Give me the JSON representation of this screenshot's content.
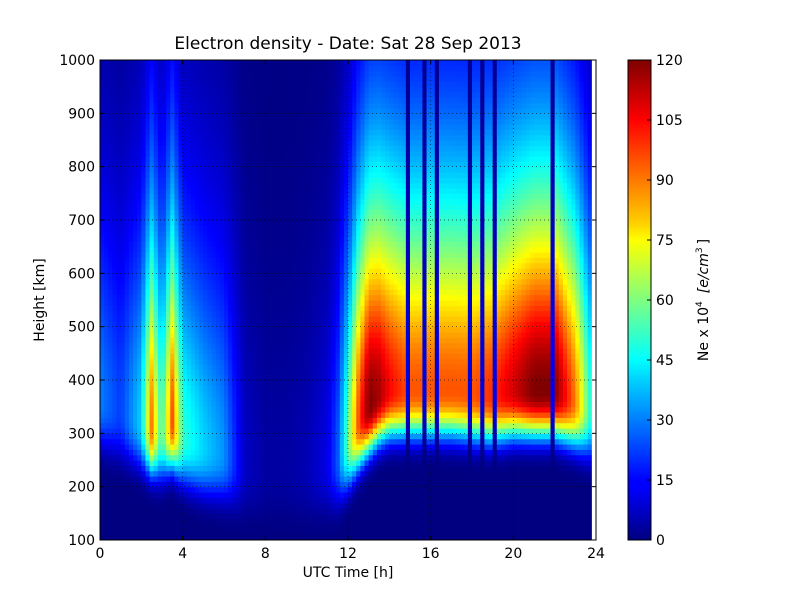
{
  "chart_data": {
    "type": "heatmap",
    "title": "Electron density - Date: Sat 28 Sep 2013",
    "xlabel": "UTC Time [h]",
    "ylabel": "Height [km]",
    "xlim": [
      0,
      24
    ],
    "ylim": [
      100,
      1000
    ],
    "x_ticks": [
      "0",
      "4",
      "8",
      "12",
      "16",
      "20",
      "24"
    ],
    "y_ticks": [
      "100",
      "200",
      "300",
      "400",
      "500",
      "600",
      "700",
      "800",
      "900",
      "1000"
    ],
    "grid": true,
    "colormap": "jet",
    "colorbar": {
      "label_prefix": "Ne x 10",
      "label_exponent": "4",
      "label_units": "[e/cm",
      "label_units_exponent": "3",
      "label_suffix": "]",
      "range": [
        0,
        120
      ],
      "ticks": [
        "0",
        "15",
        "30",
        "45",
        "60",
        "75",
        "90",
        "105",
        "120"
      ]
    },
    "peak_profile": {
      "hours": [
        0,
        1,
        2,
        2.5,
        3,
        3.5,
        4,
        5,
        6,
        7,
        8,
        9,
        10,
        11,
        11.5,
        12,
        12.5,
        13,
        13.5,
        14,
        15,
        16,
        17,
        18,
        19,
        20,
        21,
        22,
        23,
        23.8
      ],
      "peak_height_km": [
        360,
        340,
        320,
        310,
        300,
        320,
        290,
        270,
        260,
        240,
        230,
        230,
        230,
        240,
        250,
        280,
        320,
        350,
        370,
        380,
        380,
        380,
        380,
        375,
        370,
        380,
        380,
        380,
        360,
        340
      ],
      "peak_density": [
        30,
        22,
        40,
        90,
        50,
        95,
        50,
        40,
        32,
        8,
        4,
        4,
        6,
        12,
        25,
        55,
        95,
        120,
        115,
        105,
        95,
        95,
        95,
        95,
        100,
        110,
        120,
        120,
        90,
        45
      ]
    },
    "dropout_hours": [
      14.9,
      15.7,
      16.3,
      17.9,
      18.5,
      19.0,
      21.9
    ]
  }
}
